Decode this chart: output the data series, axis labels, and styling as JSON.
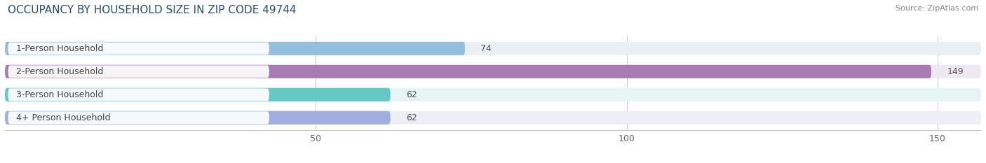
{
  "title": "OCCUPANCY BY HOUSEHOLD SIZE IN ZIP CODE 49744",
  "source": "Source: ZipAtlas.com",
  "categories": [
    "1-Person Household",
    "2-Person Household",
    "3-Person Household",
    "4+ Person Household"
  ],
  "values": [
    74,
    149,
    62,
    62
  ],
  "bar_colors": [
    "#93bedd",
    "#a97bb5",
    "#62c9c4",
    "#a0aee0"
  ],
  "bg_colors": [
    "#eaeff5",
    "#ede8f2",
    "#e5f4f4",
    "#eceef8"
  ],
  "text_colors": [
    "#444444",
    "#ffffff",
    "#444444",
    "#444444"
  ],
  "xlim": [
    0,
    157
  ],
  "xticks": [
    50,
    100,
    150
  ],
  "title_fontsize": 11,
  "source_fontsize": 8,
  "label_fontsize": 9,
  "value_fontsize": 9,
  "tick_fontsize": 9
}
